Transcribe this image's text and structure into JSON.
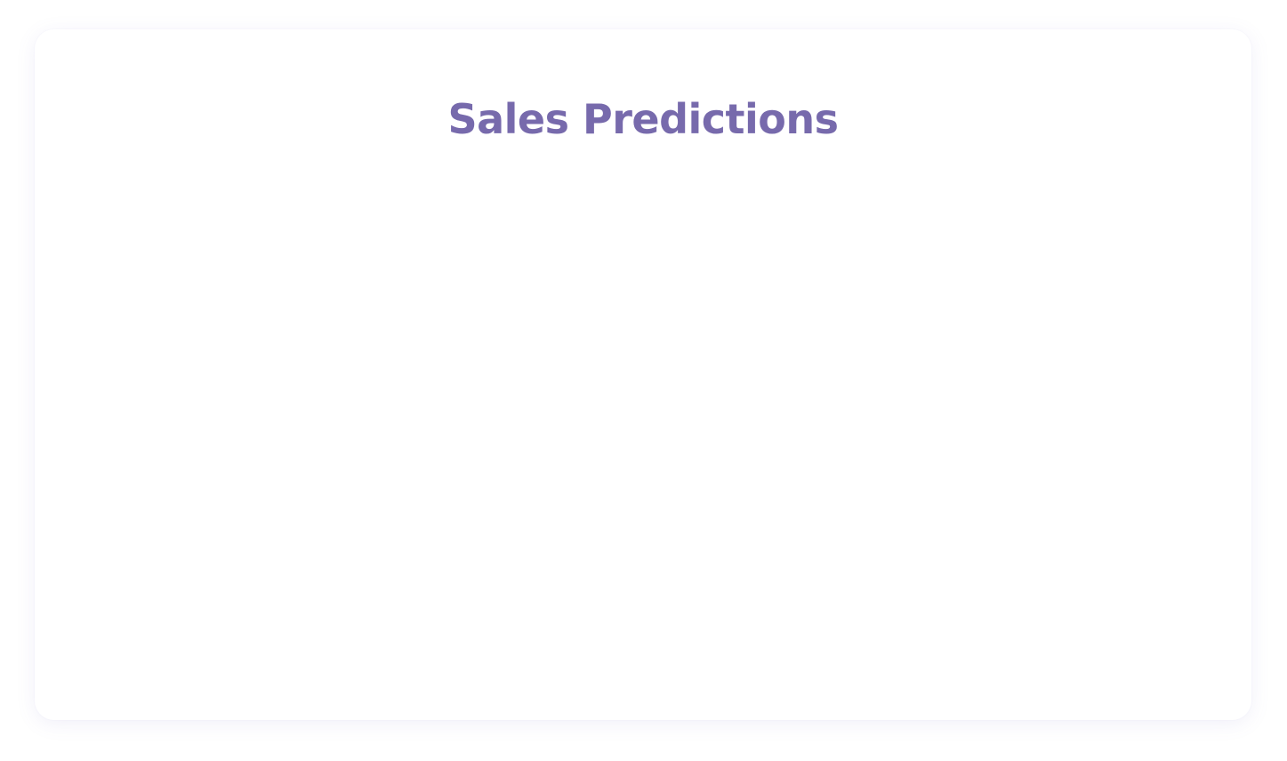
{
  "card": {
    "title": "Sales Predictions"
  },
  "colors": {
    "title": "#776aac",
    "card_background": "#ffffff",
    "page_background": "#ffffff"
  }
}
